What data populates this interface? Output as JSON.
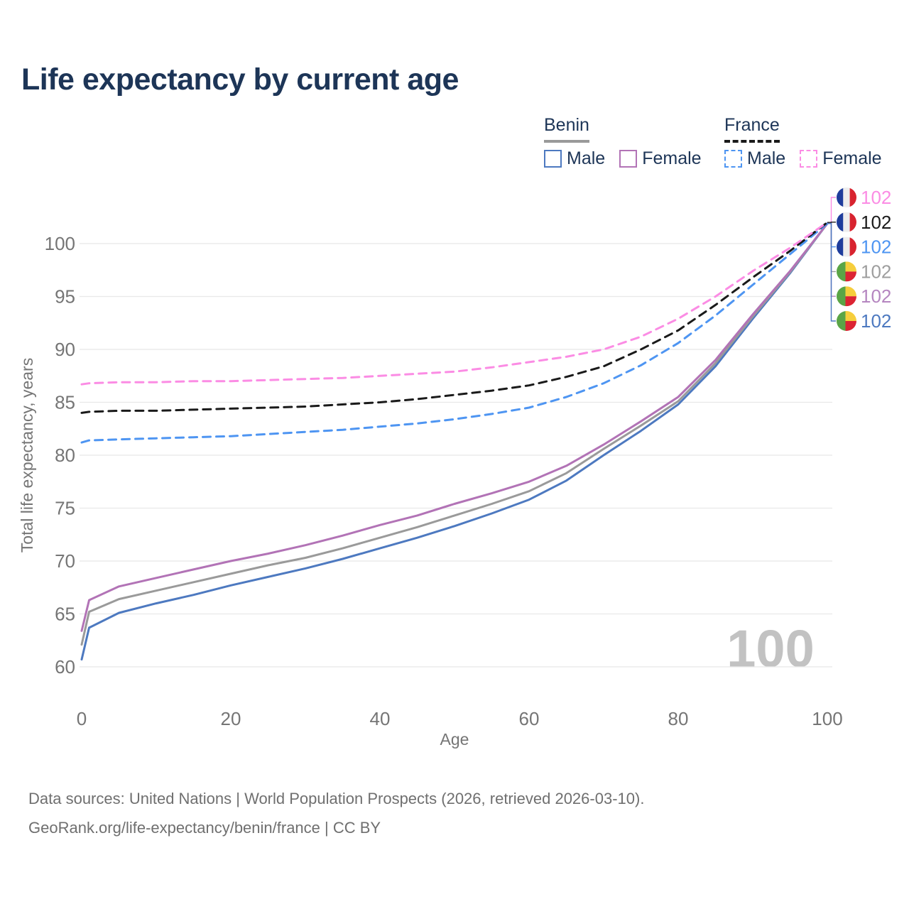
{
  "header": {
    "title": "Life expectancy by current age"
  },
  "legend": {
    "groups": [
      {
        "title": "Benin",
        "underline_style": "solid",
        "underline_color": "#9a9a9a",
        "items": [
          {
            "label": "Male",
            "box_style": "solid",
            "box_color": "#4d79c0"
          },
          {
            "label": "Female",
            "box_style": "solid",
            "box_color": "#b273b6"
          }
        ]
      },
      {
        "title": "France",
        "underline_style": "dashed",
        "underline_color": "#1a1a1a",
        "items": [
          {
            "label": "Male",
            "box_style": "dashed",
            "box_color": "#4e95f2"
          },
          {
            "label": "Female",
            "box_style": "dashed",
            "box_color": "#fb8ce4"
          }
        ]
      }
    ]
  },
  "chart_data": {
    "type": "line",
    "title": "Life expectancy by current age",
    "xlabel": "Age",
    "ylabel": "Total life expectancy, years",
    "x_ticks": [
      0,
      20,
      40,
      60,
      80,
      100
    ],
    "y_ticks": [
      60,
      65,
      70,
      75,
      80,
      85,
      90,
      95,
      100
    ],
    "xlim": [
      0,
      100
    ],
    "ylim": [
      58,
      103
    ],
    "grid": "horizontal",
    "watermark": "100",
    "x": [
      0,
      1,
      5,
      10,
      15,
      20,
      25,
      30,
      35,
      40,
      45,
      50,
      55,
      60,
      65,
      70,
      75,
      80,
      85,
      90,
      95,
      100
    ],
    "series": [
      {
        "id": "benin-male",
        "name": "Benin Male",
        "country": "Benin",
        "sex": "Male",
        "style": "solid",
        "color": "#4d79c0",
        "values": [
          60.7,
          63.7,
          65.1,
          66.0,
          66.8,
          67.7,
          68.5,
          69.3,
          70.2,
          71.2,
          72.2,
          73.3,
          74.5,
          75.8,
          77.6,
          80.0,
          82.3,
          84.8,
          88.4,
          92.9,
          97.2,
          101.9
        ]
      },
      {
        "id": "benin",
        "name": "Benin",
        "country": "Benin",
        "sex": "Both",
        "style": "solid",
        "color": "#9a9a9a",
        "values": [
          62.1,
          65.2,
          66.4,
          67.2,
          68.0,
          68.8,
          69.6,
          70.3,
          71.2,
          72.2,
          73.2,
          74.3,
          75.4,
          76.6,
          78.3,
          80.6,
          82.8,
          85.1,
          88.7,
          93.1,
          97.3,
          101.9
        ]
      },
      {
        "id": "benin-female",
        "name": "Benin Female",
        "country": "Benin",
        "sex": "Female",
        "style": "solid",
        "color": "#b273b6",
        "values": [
          63.4,
          66.3,
          67.6,
          68.4,
          69.2,
          70.0,
          70.7,
          71.5,
          72.4,
          73.4,
          74.3,
          75.4,
          76.4,
          77.5,
          79.0,
          81.0,
          83.2,
          85.5,
          89.0,
          93.3,
          97.4,
          101.9
        ]
      },
      {
        "id": "france-male",
        "name": "France Male",
        "country": "France",
        "sex": "Male",
        "style": "dashed",
        "color": "#4e95f2",
        "values": [
          81.2,
          81.4,
          81.5,
          81.6,
          81.7,
          81.8,
          82.0,
          82.2,
          82.4,
          82.7,
          83.0,
          83.4,
          83.9,
          84.5,
          85.5,
          86.8,
          88.5,
          90.6,
          93.2,
          96.1,
          99.0,
          101.9
        ]
      },
      {
        "id": "france",
        "name": "France",
        "country": "France",
        "sex": "Both",
        "style": "dashed",
        "color": "#1a1a1a",
        "values": [
          84.0,
          84.1,
          84.2,
          84.2,
          84.3,
          84.4,
          84.5,
          84.6,
          84.8,
          85.0,
          85.3,
          85.7,
          86.1,
          86.6,
          87.4,
          88.4,
          90.0,
          91.8,
          94.2,
          96.8,
          99.3,
          102.0
        ]
      },
      {
        "id": "france-female",
        "name": "France Female",
        "country": "France",
        "sex": "Female",
        "style": "dashed",
        "color": "#fb8ce4",
        "values": [
          86.7,
          86.8,
          86.9,
          86.9,
          87.0,
          87.0,
          87.1,
          87.2,
          87.3,
          87.5,
          87.7,
          87.9,
          88.3,
          88.8,
          89.3,
          90.0,
          91.2,
          92.9,
          95.0,
          97.4,
          99.6,
          102.0
        ]
      }
    ],
    "annotations": [
      {
        "series": "France Female",
        "flag": "france",
        "label": "102",
        "color": "#fb8ce4"
      },
      {
        "series": "France",
        "flag": "france",
        "label": "102",
        "color": "#1a1a1a"
      },
      {
        "series": "France Male",
        "flag": "france",
        "label": "102",
        "color": "#4e95f2"
      },
      {
        "series": "Benin",
        "flag": "benin",
        "label": "102",
        "color": "#9e9e9e"
      },
      {
        "series": "Benin Female",
        "flag": "benin",
        "label": "102",
        "color": "#b586c0"
      },
      {
        "series": "Benin Male",
        "flag": "benin",
        "label": "102",
        "color": "#4d79c0"
      }
    ],
    "flags": {
      "france": [
        "#1f3d9c",
        "#ededed",
        "#d8232f"
      ],
      "benin": [
        "#5aa546",
        "#f6ce3c",
        "#dc2433"
      ]
    },
    "colors": {
      "grid": "#e8e8e8",
      "axis_text": "#757575",
      "watermark": "#c2c2c2",
      "title_text": "#1d3557",
      "footer_text": "#6f6f6f"
    }
  },
  "footer": {
    "line1": "Data sources: United Nations | World Population Prospects (2026, retrieved 2026-03-10).",
    "line2": "GeoRank.org/life-expectancy/benin/france | CC BY"
  }
}
